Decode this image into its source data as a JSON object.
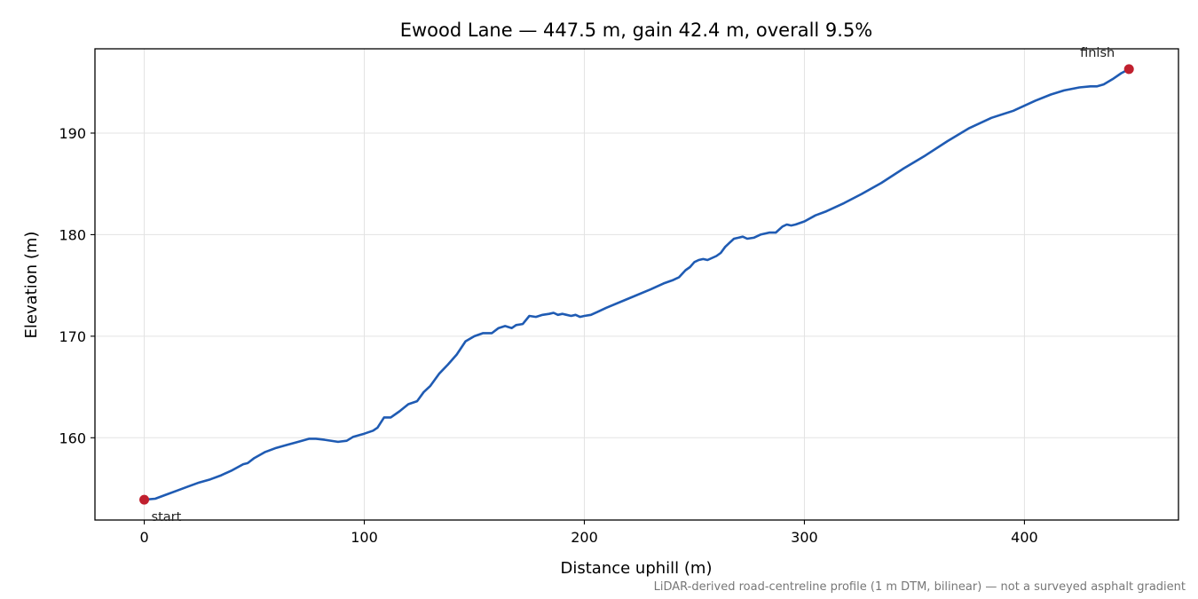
{
  "chart_data": {
    "type": "line",
    "title": "Ewood Lane — 447.5 m, gain 42.4 m, overall 9.5%",
    "xlabel": "Distance uphill (m)",
    "ylabel": "Elevation (m)",
    "xlim": [
      -22.4,
      470.0
    ],
    "ylim": [
      151.9,
      198.3
    ],
    "xticks": [
      0,
      100,
      200,
      300,
      400
    ],
    "yticks": [
      160,
      170,
      180,
      190
    ],
    "grid": true,
    "footnote": "LiDAR-derived road-centreline profile (1 m DTM, bilinear) — not a surveyed asphalt gradient",
    "series": [
      {
        "color": "#1f5bb3",
        "x": [
          0,
          5,
          10,
          15,
          20,
          25,
          30,
          35,
          40,
          45,
          47,
          50,
          55,
          60,
          65,
          70,
          75,
          78,
          82,
          88,
          92,
          95,
          100,
          104,
          106,
          109,
          112,
          116,
          120,
          124,
          127,
          130,
          134,
          138,
          142,
          146,
          150,
          154,
          158,
          161,
          164,
          167,
          169,
          172,
          175,
          178,
          181,
          184,
          186,
          188,
          190,
          192,
          194,
          196,
          198,
          200,
          203,
          206,
          210,
          220,
          230,
          236,
          240,
          243,
          246,
          248,
          250,
          252,
          254,
          256,
          260,
          262,
          264,
          266,
          268,
          270,
          272,
          274,
          277,
          280,
          284,
          287,
          290,
          292,
          294,
          296,
          300,
          305,
          310,
          318,
          326,
          335,
          345,
          355,
          365,
          375,
          385,
          395,
          405,
          412,
          418,
          425,
          430,
          433,
          436,
          440,
          444,
          447.5
        ],
        "y": [
          153.9,
          154.0,
          154.4,
          154.8,
          155.2,
          155.6,
          155.9,
          156.3,
          156.8,
          157.4,
          157.5,
          158.0,
          158.6,
          159.0,
          159.3,
          159.6,
          159.9,
          159.9,
          159.8,
          159.6,
          159.7,
          160.1,
          160.4,
          160.7,
          161.0,
          162.0,
          162.0,
          162.6,
          163.3,
          163.6,
          164.5,
          165.1,
          166.3,
          167.2,
          168.2,
          169.5,
          170.0,
          170.3,
          170.3,
          170.8,
          171.0,
          170.8,
          171.1,
          171.2,
          172.0,
          171.9,
          172.1,
          172.2,
          172.3,
          172.1,
          172.2,
          172.1,
          172.0,
          172.1,
          171.9,
          172.0,
          172.1,
          172.4,
          172.8,
          173.7,
          174.6,
          175.2,
          175.5,
          175.8,
          176.5,
          176.8,
          177.3,
          177.5,
          177.6,
          177.5,
          177.9,
          178.2,
          178.8,
          179.2,
          179.6,
          179.7,
          179.8,
          179.6,
          179.7,
          180.0,
          180.2,
          180.2,
          180.8,
          181.0,
          180.9,
          181.0,
          181.3,
          181.9,
          182.3,
          183.1,
          184.0,
          185.1,
          186.5,
          187.8,
          189.2,
          190.5,
          191.5,
          192.2,
          193.2,
          193.8,
          194.2,
          194.5,
          194.6,
          194.6,
          194.8,
          195.3,
          195.9,
          196.3
        ]
      }
    ],
    "markers": [
      {
        "label": "start",
        "x": 0,
        "y": 153.9,
        "color": "#c0202e"
      },
      {
        "label": "finish",
        "x": 447.5,
        "y": 196.3,
        "color": "#c0202e"
      }
    ]
  }
}
